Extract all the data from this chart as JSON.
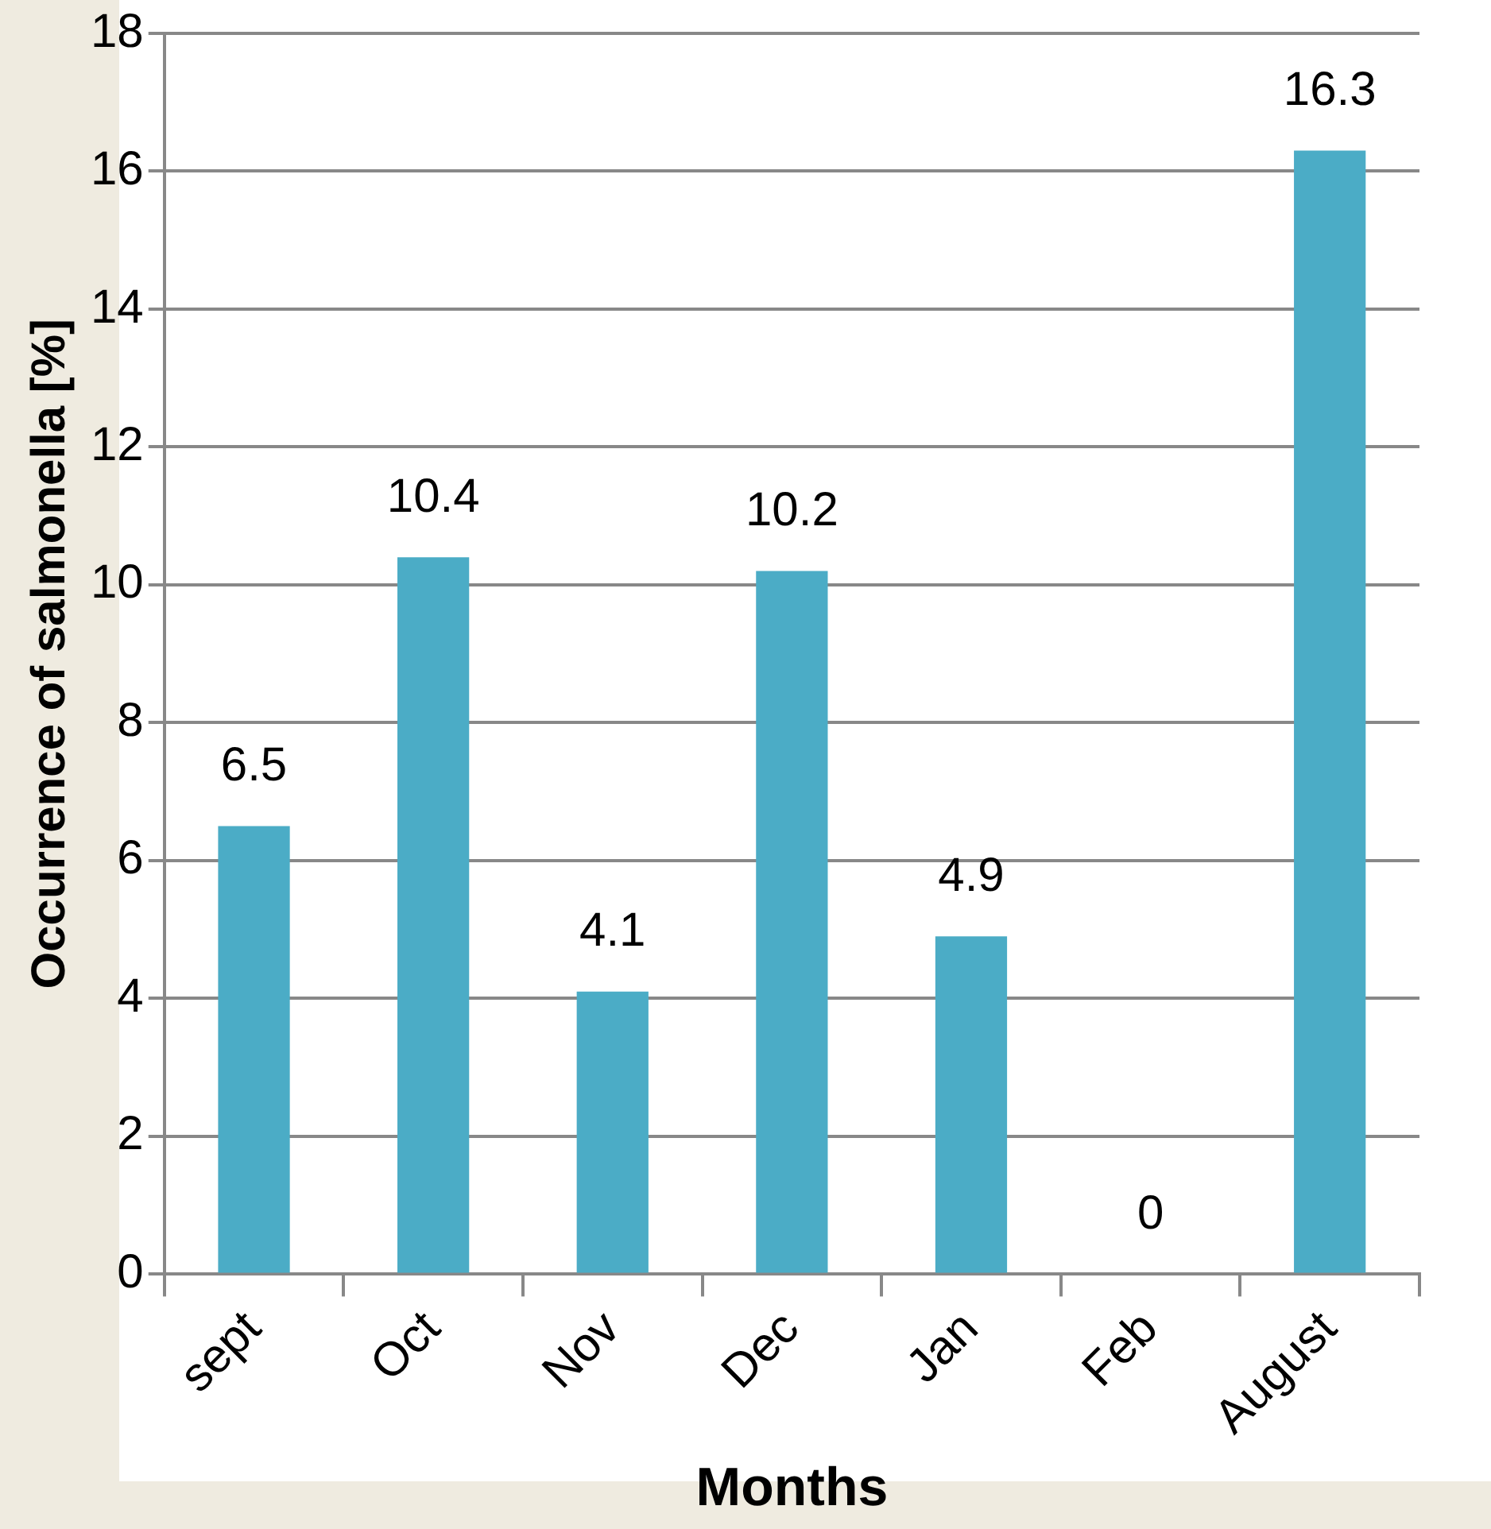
{
  "chart_data": {
    "type": "bar",
    "xlabel": "Months",
    "ylabel": "Occurrence of salmonella [%]",
    "categories": [
      "sept",
      "Oct",
      "Nov",
      "Dec",
      "Jan",
      "Feb",
      "August"
    ],
    "values": [
      6.5,
      10.4,
      4.1,
      10.2,
      4.9,
      0,
      16.3
    ],
    "color": "#4bacc6",
    "ylim": [
      0,
      18
    ],
    "yticks": [
      0,
      2,
      4,
      6,
      8,
      10,
      12,
      14,
      16,
      18
    ],
    "grid": "y",
    "data_labels": true
  }
}
